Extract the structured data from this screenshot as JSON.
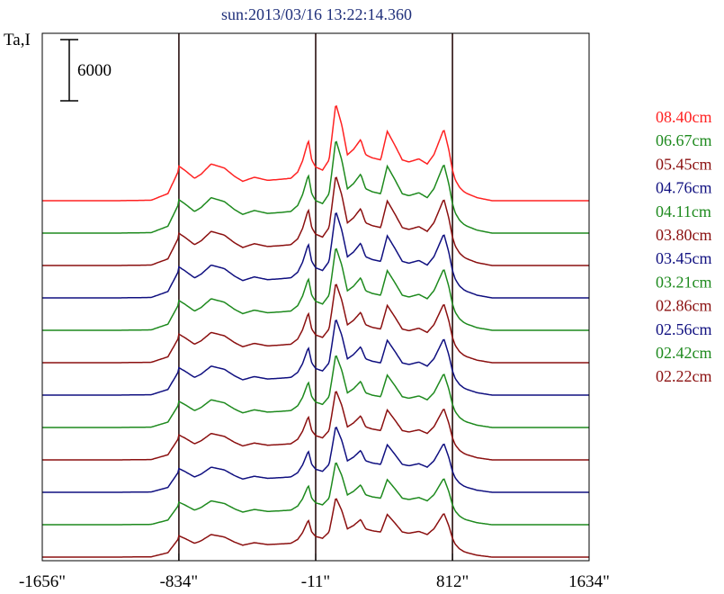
{
  "chart_data": {
    "type": "line",
    "title": "sun:2013/03/16 13:22:14.360",
    "ylabel": "Ta,I",
    "scale_bar_label": "6000",
    "scale_bar_value": 6000,
    "xlim": [
      -1656,
      1634
    ],
    "x_ticks": [
      -1656,
      -834,
      -11,
      812,
      1634
    ],
    "x_tick_labels": [
      "-1656\"",
      "-834\"",
      "-11\"",
      "812\"",
      "1634\""
    ],
    "vertical_lines": [
      -834,
      -11,
      812
    ],
    "grid": false,
    "legend_position": "right",
    "series": [
      {
        "name": "08.40cm",
        "color": "#ff2222"
      },
      {
        "name": "06.67cm",
        "color": "#1e8a1e"
      },
      {
        "name": "05.45cm",
        "color": "#8b1010"
      },
      {
        "name": "04.76cm",
        "color": "#101080"
      },
      {
        "name": "04.11cm",
        "color": "#1e8a1e"
      },
      {
        "name": "03.80cm",
        "color": "#8b1010"
      },
      {
        "name": "03.45cm",
        "color": "#101080"
      },
      {
        "name": "03.21cm",
        "color": "#1e8a1e"
      },
      {
        "name": "02.86cm",
        "color": "#8b1010"
      },
      {
        "name": "02.56cm",
        "color": "#101080"
      },
      {
        "name": "02.42cm",
        "color": "#1e8a1e"
      },
      {
        "name": "02.22cm",
        "color": "#8b1010"
      }
    ],
    "profile_x": [
      -1656,
      -1200,
      -1000,
      -900,
      -840,
      -834,
      -800,
      -740,
      -700,
      -640,
      -560,
      -500,
      -450,
      -380,
      -300,
      -220,
      -160,
      -120,
      -90,
      -55,
      -35,
      -11,
      30,
      70,
      110,
      145,
      180,
      215,
      260,
      290,
      330,
      380,
      420,
      470,
      510,
      550,
      610,
      660,
      700,
      760,
      790,
      812,
      830,
      855,
      880,
      900,
      960,
      1050,
      1200,
      1634
    ],
    "profile_y": [
      0,
      0,
      50,
      700,
      2800,
      3400,
      3000,
      2200,
      2600,
      3600,
      3200,
      2400,
      1900,
      2300,
      2000,
      2100,
      2200,
      2800,
      3900,
      5900,
      4000,
      3300,
      3000,
      4000,
      9500,
      7500,
      4500,
      5000,
      6000,
      4500,
      4200,
      4000,
      6800,
      5300,
      4000,
      3800,
      4100,
      3600,
      4500,
      7000,
      5000,
      3000,
      2000,
      1300,
      900,
      700,
      300,
      0,
      0,
      0
    ]
  }
}
